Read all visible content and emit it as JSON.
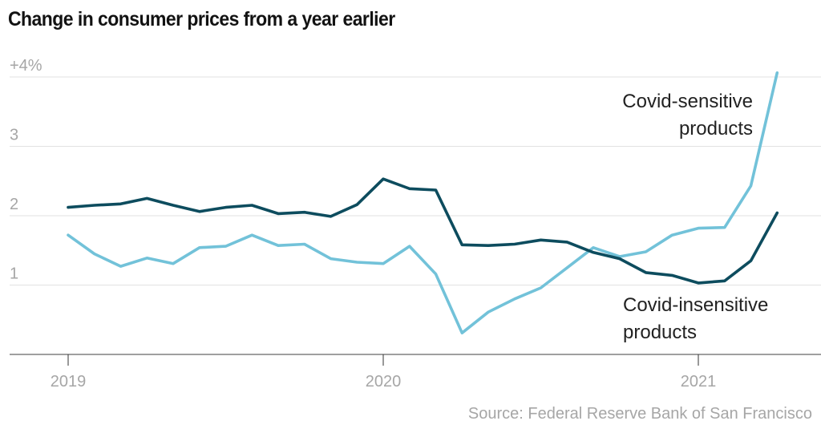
{
  "chart_data": {
    "type": "line",
    "title": "Change in consumer prices from a year earlier",
    "xlabel": "",
    "ylabel": "",
    "ylim": [
      0,
      4
    ],
    "yticks": [
      {
        "value": 4,
        "label": "+4%"
      },
      {
        "value": 3,
        "label": "3"
      },
      {
        "value": 2,
        "label": "2"
      },
      {
        "value": 1,
        "label": "1"
      }
    ],
    "xticks": [
      {
        "index": 0,
        "label": "2019"
      },
      {
        "index": 12,
        "label": "2020"
      },
      {
        "index": 24,
        "label": "2021"
      }
    ],
    "x_period": "monthly, Jan 2019 - Apr 2021",
    "grid": true,
    "series": [
      {
        "name": "Covid-sensitive products",
        "label_lines": [
          "Covid-sensitive",
          "products"
        ],
        "color": "#72c2d9",
        "values": [
          1.72,
          1.45,
          1.27,
          1.39,
          1.31,
          1.54,
          1.56,
          1.72,
          1.57,
          1.59,
          1.38,
          1.33,
          1.31,
          1.56,
          1.16,
          0.31,
          0.61,
          0.8,
          0.96,
          1.25,
          1.54,
          1.41,
          1.48,
          1.72,
          1.82,
          1.83,
          2.43,
          4.06
        ]
      },
      {
        "name": "Covid-insensitive products",
        "label_lines": [
          "Covid-insensitive",
          "products"
        ],
        "color": "#0d4c5e",
        "values": [
          2.12,
          2.15,
          2.17,
          2.25,
          2.15,
          2.06,
          2.12,
          2.15,
          2.03,
          2.05,
          1.99,
          2.16,
          2.53,
          2.39,
          2.37,
          1.58,
          1.57,
          1.59,
          1.65,
          1.62,
          1.47,
          1.38,
          1.18,
          1.14,
          1.03,
          1.06,
          1.35,
          2.04
        ]
      }
    ],
    "source": "Source: Federal Reserve Bank of San Francisco"
  }
}
